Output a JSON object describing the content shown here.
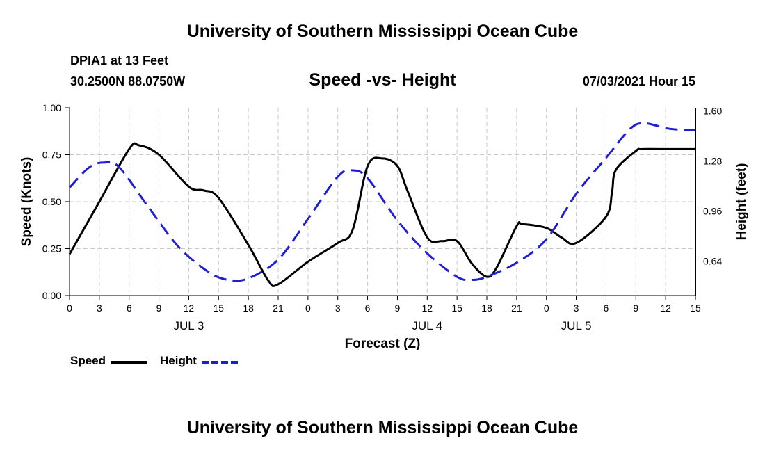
{
  "header": {
    "title_top": "University of Southern Mississippi Ocean Cube",
    "title_bottom": "University of Southern Mississippi Ocean Cube",
    "station": "DPIA1 at 13 Feet",
    "coords": "30.2500N  88.0750W",
    "date": "07/03/2021 Hour 15"
  },
  "legend": {
    "speed_label": "Speed",
    "height_label": "Height"
  },
  "chart_data": {
    "type": "line",
    "title": "Speed -vs- Height",
    "xlabel": "Forecast (Z)",
    "ylabel_left": "Speed (Knots)",
    "ylabel_right": "Height (feet)",
    "xlim": [
      0,
      63
    ],
    "ylim_left": [
      0,
      1
    ],
    "ylim_right": [
      0.42,
      1.62
    ],
    "x_ticks": [
      0,
      3,
      6,
      9,
      12,
      15,
      18,
      21,
      24,
      27,
      30,
      33,
      36,
      39,
      42,
      45,
      48,
      51,
      54,
      57,
      60,
      63
    ],
    "x_tick_labels": [
      "0",
      "3",
      "6",
      "9",
      "12",
      "15",
      "18",
      "21",
      "0",
      "3",
      "6",
      "9",
      "12",
      "15",
      "18",
      "21",
      "0",
      "3",
      "6",
      "9",
      "12",
      "15"
    ],
    "y_left_ticks": [
      0,
      0.25,
      0.5,
      0.75,
      1.0
    ],
    "y_left_tick_labels": [
      "0.00",
      "0.25",
      "0.50",
      "0.75",
      "1.00"
    ],
    "y_right_ticks": [
      0.64,
      0.96,
      1.28,
      1.6
    ],
    "y_right_tick_labels": [
      "0.64",
      "0.96",
      "1.28",
      "1.60"
    ],
    "day_labels": [
      {
        "x": 12,
        "label": "JUL 3"
      },
      {
        "x": 36,
        "label": "JUL 4"
      },
      {
        "x": 51,
        "label": "JUL 5"
      }
    ],
    "grid": true,
    "series": [
      {
        "name": "Speed",
        "axis": "left",
        "color": "#000000",
        "dash": "solid",
        "x": [
          0,
          3,
          6,
          7,
          9,
          12,
          13.5,
          15,
          18,
          20,
          21,
          24,
          27,
          28.5,
          30,
          31.5,
          33,
          34,
          36,
          37.5,
          39,
          40.5,
          42,
          43,
          45,
          45.6,
          48,
          49.5,
          51,
          54,
          54.6,
          55,
          57,
          57.6,
          60,
          61.5,
          63
        ],
        "y": [
          0.22,
          0.5,
          0.78,
          0.8,
          0.75,
          0.58,
          0.56,
          0.52,
          0.27,
          0.08,
          0.06,
          0.18,
          0.28,
          0.35,
          0.69,
          0.73,
          0.69,
          0.56,
          0.31,
          0.29,
          0.29,
          0.17,
          0.1,
          0.15,
          0.37,
          0.38,
          0.36,
          0.31,
          0.28,
          0.42,
          0.55,
          0.67,
          0.77,
          0.78,
          0.78,
          0.78,
          0.78
        ]
      },
      {
        "name": "Height",
        "axis": "right",
        "color": "#1f1fd0",
        "dash": "dashed",
        "x": [
          0,
          2,
          3.5,
          5,
          8,
          11,
          14,
          16,
          18,
          21,
          24,
          27,
          28.5,
          30,
          33,
          36,
          39,
          40.5,
          42,
          45,
          48,
          51,
          54,
          56.5,
          58,
          60,
          61.5,
          63
        ],
        "y": [
          1.11,
          1.24,
          1.27,
          1.24,
          0.98,
          0.73,
          0.57,
          0.52,
          0.53,
          0.65,
          0.91,
          1.18,
          1.22,
          1.17,
          0.9,
          0.69,
          0.54,
          0.52,
          0.54,
          0.63,
          0.78,
          1.07,
          1.3,
          1.49,
          1.52,
          1.49,
          1.48,
          1.48
        ]
      }
    ]
  }
}
